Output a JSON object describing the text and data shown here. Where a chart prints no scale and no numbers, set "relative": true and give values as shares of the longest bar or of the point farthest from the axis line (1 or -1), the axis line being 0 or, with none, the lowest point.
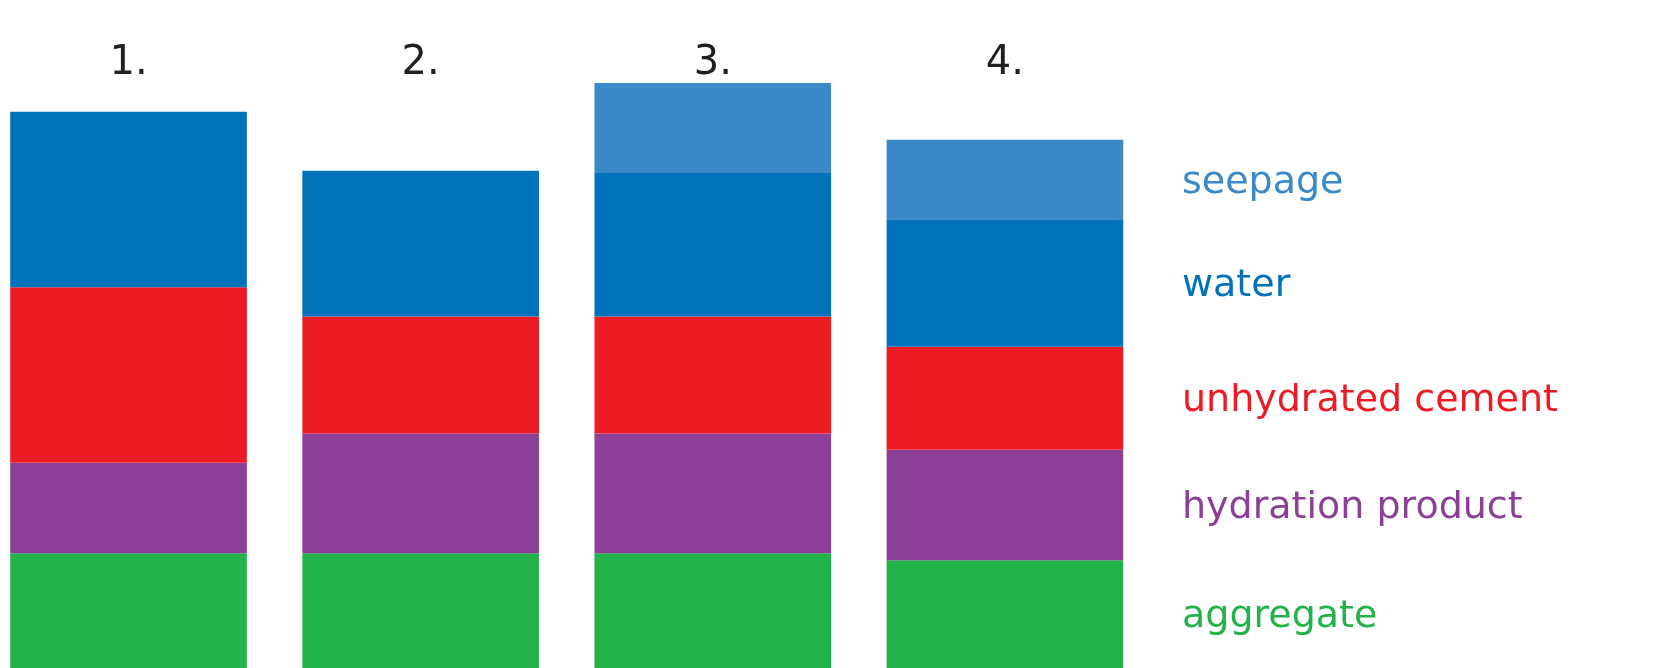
{
  "chart_data": {
    "type": "bar",
    "relative": true,
    "stacked": true,
    "categories": [
      "1.",
      "2.",
      "3.",
      "4."
    ],
    "legend": false,
    "grid": false,
    "series": [
      {
        "name": "aggregate",
        "color": "#24b24b",
        "values": [
          0.196,
          0.196,
          0.196,
          0.184
        ]
      },
      {
        "name": "hydration product",
        "color": "#8b3f96",
        "values": [
          0.155,
          0.205,
          0.205,
          0.189
        ]
      },
      {
        "name": "unhydrated cement",
        "color": "#ed1c24",
        "values": [
          0.3,
          0.2,
          0.2,
          0.176
        ]
      },
      {
        "name": "water",
        "color": "#0072bc",
        "values": [
          0.3,
          0.249,
          0.245,
          0.218
        ]
      },
      {
        "name": "seepage",
        "color": "#3b89c9",
        "values": [
          null,
          null,
          0.154,
          0.136
        ]
      }
    ]
  }
}
